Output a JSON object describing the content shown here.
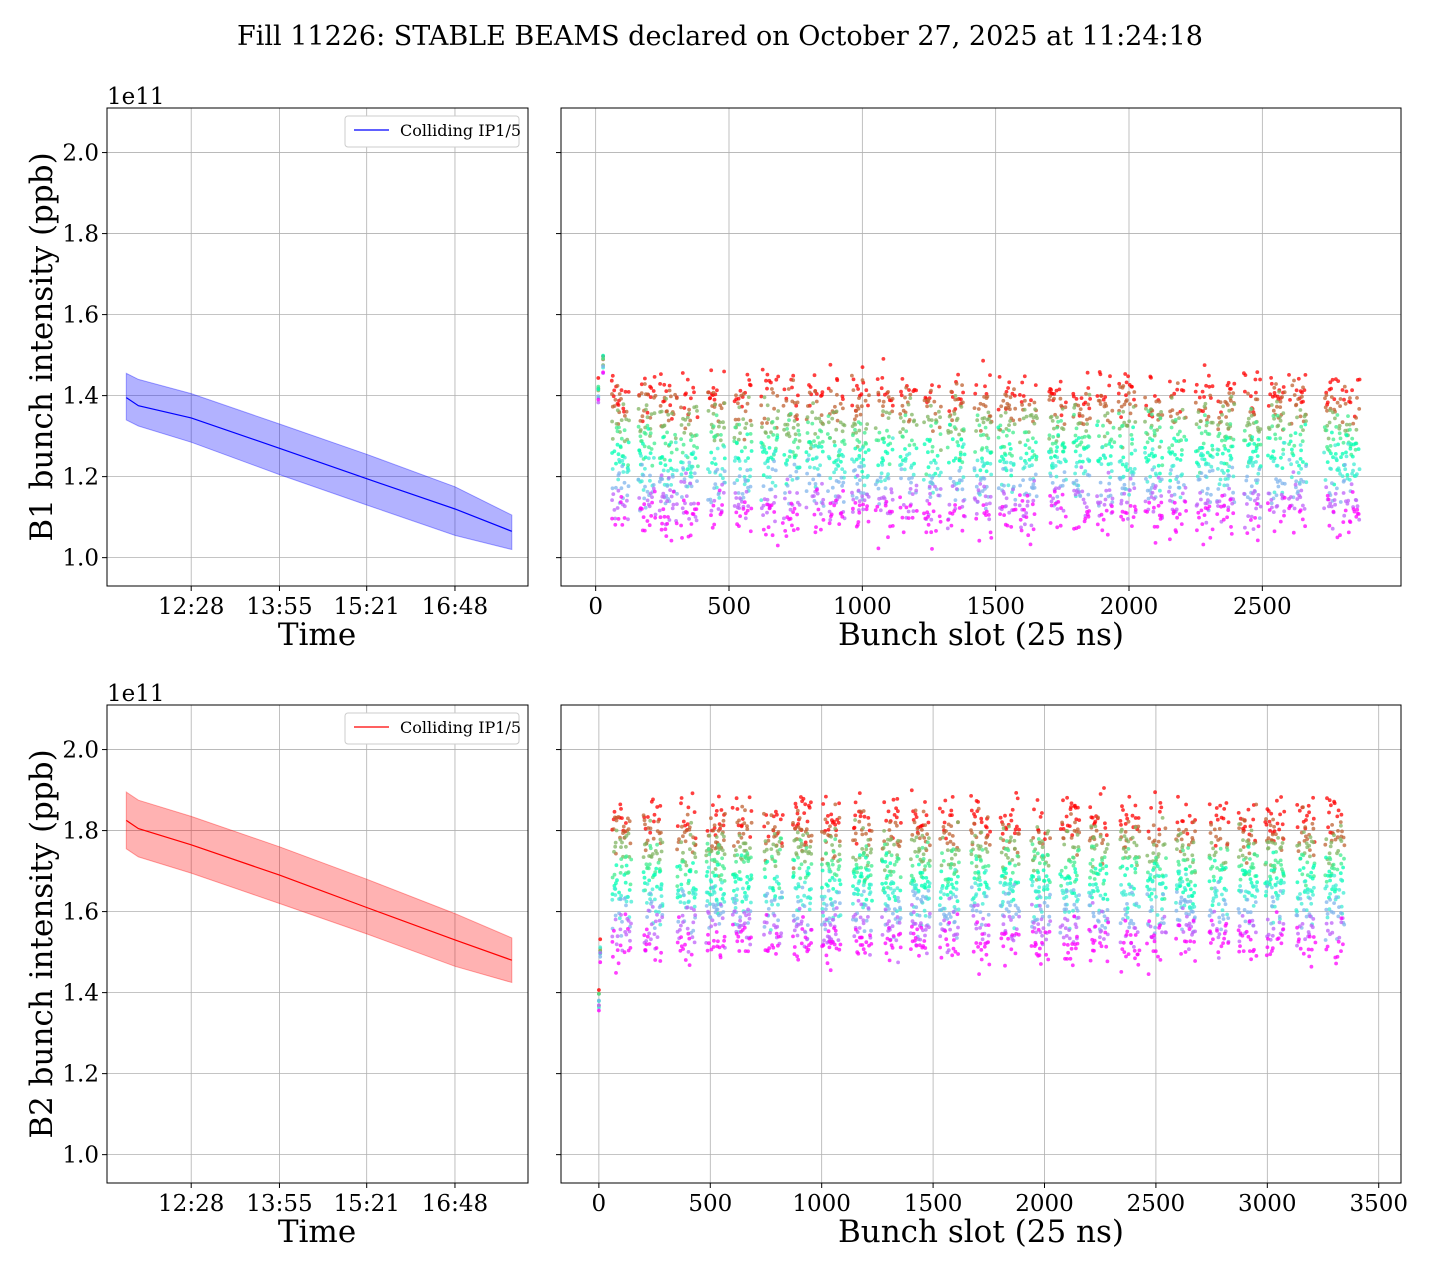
{
  "figure": {
    "title": "Fill 11226: STABLE BEAMS declared on October 27, 2025 at 11:24:18"
  },
  "chart_data": [
    {
      "type": "line",
      "id": "b1_time",
      "title": "",
      "xlabel": "Time",
      "ylabel": "B1 bunch intensity (ppb)",
      "y_multiplier": "1e11",
      "x_tick_labels": [
        "12:28",
        "13:55",
        "15:21",
        "16:48"
      ],
      "y_ticks": [
        1.0,
        1.2,
        1.4,
        1.6,
        1.8,
        2.0
      ],
      "ylim": [
        0.93,
        2.11
      ],
      "grid": true,
      "legend_position": "upper-right",
      "series": [
        {
          "name": "Colliding IP1/5",
          "color": "#0000ff",
          "band_color": "#0000ff",
          "x": [
            "11:24",
            "11:36",
            "12:28",
            "13:55",
            "15:21",
            "16:48",
            "17:44"
          ],
          "mean": [
            1.395,
            1.375,
            1.345,
            1.27,
            1.195,
            1.12,
            1.065
          ],
          "upper": [
            1.455,
            1.44,
            1.405,
            1.33,
            1.255,
            1.175,
            1.105
          ],
          "lower": [
            1.34,
            1.325,
            1.285,
            1.205,
            1.13,
            1.055,
            1.02
          ]
        }
      ]
    },
    {
      "type": "scatter",
      "id": "b1_slots",
      "title": "",
      "xlabel": "Bunch slot (25 ns)",
      "ylabel": "",
      "x_ticks": [
        0,
        500,
        1000,
        1500,
        2000,
        2500
      ],
      "xlim": [
        -130,
        3020
      ],
      "ylim": [
        0.93,
        2.11
      ],
      "grid": true,
      "colormap": "rainbow (violet at start of fill, red at end)",
      "trains_start": [
        60,
        160,
        240,
        320,
        420,
        520,
        620,
        700,
        790,
        870,
        960,
        1050,
        1140,
        1230,
        1320,
        1420,
        1510,
        1590,
        1700,
        1790,
        1880,
        1960,
        2060,
        2150,
        2250,
        2330,
        2430,
        2520,
        2600,
        2730,
        2800
      ],
      "train_length": 65,
      "first_value_range": [
        1.36,
        1.46
      ],
      "last_value_range": [
        1.02,
        1.18
      ],
      "pilot": {
        "x": [
          10,
          28
        ],
        "values": [
          1.43,
          1.5
        ]
      }
    },
    {
      "type": "line",
      "id": "b2_time",
      "title": "",
      "xlabel": "Time",
      "ylabel": "B2 bunch intensity (ppb)",
      "y_multiplier": "1e11",
      "x_tick_labels": [
        "12:28",
        "13:55",
        "15:21",
        "16:48"
      ],
      "y_ticks": [
        1.0,
        1.2,
        1.4,
        1.6,
        1.8,
        2.0
      ],
      "ylim": [
        0.93,
        2.11
      ],
      "grid": true,
      "legend_position": "upper-right",
      "series": [
        {
          "name": "Colliding IP1/5",
          "color": "#ff0000",
          "band_color": "#ff0000",
          "x": [
            "11:24",
            "11:36",
            "12:28",
            "13:55",
            "15:21",
            "16:48",
            "17:44"
          ],
          "mean": [
            1.825,
            1.805,
            1.765,
            1.69,
            1.61,
            1.53,
            1.48
          ],
          "upper": [
            1.895,
            1.875,
            1.835,
            1.76,
            1.68,
            1.595,
            1.535
          ],
          "lower": [
            1.755,
            1.735,
            1.695,
            1.62,
            1.545,
            1.465,
            1.425
          ]
        }
      ]
    },
    {
      "type": "scatter",
      "id": "b2_slots",
      "title": "",
      "xlabel": "Bunch slot (25 ns)",
      "ylabel": "",
      "x_ticks": [
        0,
        500,
        1000,
        1500,
        2000,
        2500,
        3000,
        3500
      ],
      "xlim": [
        -170,
        3600
      ],
      "ylim": [
        0.93,
        2.11
      ],
      "grid": true,
      "colormap": "rainbow (violet at start of fill, red at end)",
      "trains_start": [
        60,
        200,
        350,
        480,
        600,
        740,
        870,
        1000,
        1140,
        1270,
        1400,
        1530,
        1670,
        1800,
        1940,
        2070,
        2200,
        2340,
        2460,
        2590,
        2740,
        2870,
        2990,
        3130,
        3260
      ],
      "train_length": 85,
      "first_value_range": [
        1.78,
        1.88
      ],
      "last_value_range": [
        1.44,
        1.6
      ],
      "pilot": {
        "x": [
          0,
          6
        ],
        "values": [
          1.4,
          1.52
        ]
      }
    }
  ]
}
